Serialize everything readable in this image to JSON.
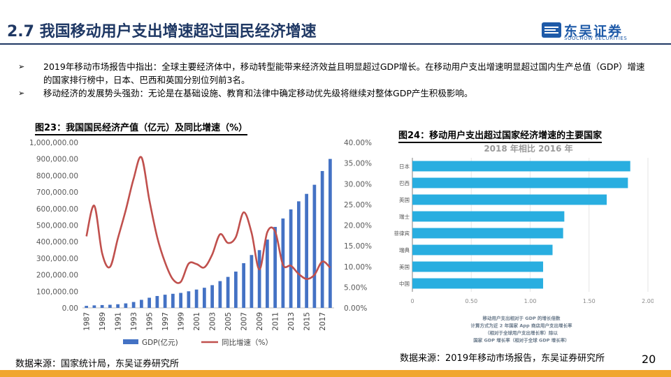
{
  "header": {
    "title": "2.7 我国移动用户支出增速超过国民经济增速",
    "logo_cn": "东吴证券",
    "logo_en": "SOOCHOW SECURITIES"
  },
  "bullets": [
    {
      "text": "2019年移动市场报告中指出：全球主要经济体中，移动转型能带来经济效益且明显超过GDP增长。在移动用户支出增速明显超过国内生产总值（GDP）增速的国家排行榜中，日本、巴西和英国分别位列前3名。"
    },
    {
      "text": "移动经济的发展势头强劲：无论是在基础设施、教育和法律中确定移动优先级将继续对整体GDP产生积极影响。"
    }
  ],
  "figure23_title": "图23：我国国民经济产值（亿元）及同比增速（%）",
  "figure24_title": "图24：移动用户支出超过国家经济增速的主要国家",
  "source_left": "数据来源：国家统计局，东吴证券研究所",
  "source_right": "数据来源：2019年移动市场报告，东吴证券研究所",
  "page_number": "20",
  "colors": {
    "title": "#1f3864",
    "bar": "#4472c4",
    "line": "#c0504d",
    "bar2": "#29aee0",
    "accent": "#f0a630"
  },
  "chart_data": [
    {
      "type": "bar",
      "title": "图23：我国国民经济产值（亿元）及同比增速（%）",
      "categories": [
        "1987",
        "1988",
        "1989",
        "1990",
        "1991",
        "1992",
        "1993",
        "1994",
        "1995",
        "1996",
        "1997",
        "1998",
        "1999",
        "2000",
        "2001",
        "2002",
        "2003",
        "2004",
        "2005",
        "2006",
        "2007",
        "2008",
        "2009",
        "2010",
        "2011",
        "2012",
        "2013",
        "2014",
        "2015",
        "2016",
        "2017",
        "2018"
      ],
      "x_tick_labels": [
        "1987",
        "1989",
        "1991",
        "1993",
        "1995",
        "1997",
        "1999",
        "2001",
        "2003",
        "2005",
        "2007",
        "2009",
        "2011",
        "2013",
        "2015",
        "2017"
      ],
      "series": [
        {
          "name": "GDP(亿元)",
          "type": "bar",
          "axis": "left",
          "values": [
            12175,
            15180,
            17180,
            18873,
            22006,
            27195,
            35673,
            48638,
            61340,
            71814,
            79715,
            85196,
            90564,
            100280,
            110863,
            121717,
            137422,
            161840,
            187319,
            219439,
            270232,
            319516,
            349081,
            413030,
            489301,
            540367,
            595244,
            643974,
            689052,
            744127,
            827122,
            900310
          ]
        },
        {
          "name": "同比增速（%）",
          "type": "line",
          "axis": "right",
          "values": [
            17.3,
            24.7,
            13.2,
            9.9,
            16.8,
            23.6,
            31.2,
            36.4,
            26.1,
            17.1,
            11.0,
            6.9,
            6.3,
            10.7,
            10.6,
            9.8,
            12.9,
            17.8,
            15.7,
            17.1,
            23.1,
            18.2,
            9.3,
            18.3,
            18.5,
            10.4,
            10.2,
            8.2,
            7.0,
            8.0,
            11.2,
            9.7
          ]
        }
      ],
      "y_left": {
        "min": 0,
        "max": 1000000,
        "ticks": [
          "0.00",
          "100,000.00",
          "200,000.00",
          "300,000.00",
          "400,000.00",
          "500,000.00",
          "600,000.00",
          "700,000.00",
          "800,000.00",
          "900,000.00",
          "1,000,000.00"
        ]
      },
      "y_right": {
        "min": 0,
        "max": 40,
        "ticks": [
          "0.00%",
          "5.00%",
          "10.00%",
          "15.00%",
          "20.00%",
          "25.00%",
          "30.00%",
          "35.00%",
          "40.00%"
        ]
      },
      "legend": [
        "GDP(亿元)",
        "同比增速（%）"
      ],
      "legend_position": "bottom"
    },
    {
      "type": "bar",
      "orientation": "horizontal",
      "title": "2018 年相比 2016 年",
      "categories": [
        "日本",
        "巴西",
        "英国",
        "瑞士",
        "菲律宾",
        "瑞典",
        "美国",
        "中国"
      ],
      "values": [
        1.85,
        1.83,
        1.65,
        1.29,
        1.28,
        1.19,
        1.11,
        1.11
      ],
      "x_ticks": [
        "0",
        "0.50",
        "1.00",
        "1.50",
        "2.00"
      ],
      "xlim": [
        0,
        2.0
      ],
      "footnote_lines": [
        "移动用户支出相对于 GDP 的增长倍数",
        "计算方式为近 2 年国家 App 商店用户支出增长率",
        "（相对于全球用户支出增长率）除以",
        "国家 GDP 增长率（相对于全球 GDP 增长率）"
      ]
    }
  ]
}
